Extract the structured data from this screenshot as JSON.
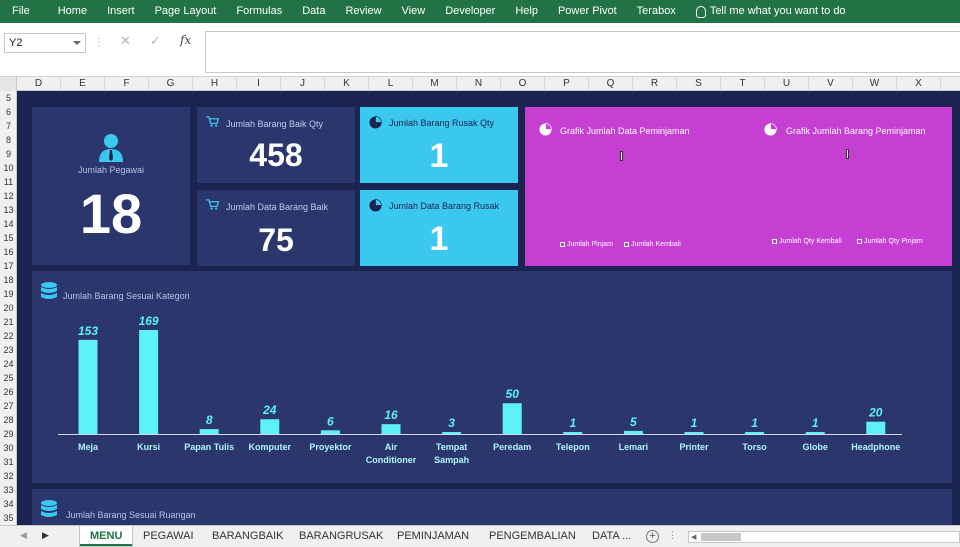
{
  "ribbon": {
    "tabs": [
      "File",
      "Home",
      "Insert",
      "Page Layout",
      "Formulas",
      "Data",
      "Review",
      "View",
      "Developer",
      "Help",
      "Power Pivot",
      "Terabox"
    ],
    "tell_me": "Tell me what you want to do"
  },
  "formula_bar": {
    "name_box": "Y2",
    "cancel_icon": "✕",
    "enter_icon": "✓",
    "fx_label": "fx",
    "formula_value": ""
  },
  "columns": [
    "D",
    "E",
    "F",
    "G",
    "H",
    "I",
    "J",
    "K",
    "L",
    "M",
    "N",
    "O",
    "P",
    "Q",
    "R",
    "S",
    "T",
    "U",
    "V",
    "W",
    "X"
  ],
  "rows": [
    "5",
    "6",
    "7",
    "8",
    "9",
    "10",
    "11",
    "12",
    "13",
    "14",
    "15",
    "16",
    "17",
    "18",
    "19",
    "20",
    "21",
    "22",
    "23",
    "24",
    "25",
    "26",
    "27",
    "28",
    "29",
    "30",
    "31",
    "32",
    "33",
    "34",
    "35"
  ],
  "dashboard": {
    "pegawai": {
      "label": "Jumlah Pegawai",
      "value": "18",
      "icon": "user-icon"
    },
    "barang_baik_qty": {
      "label": "Jumlah Barang Baik Qty",
      "value": "458",
      "icon": "cart-icon"
    },
    "data_barang_baik": {
      "label": "Jumlah Data Barang Baik",
      "value": "75",
      "icon": "cart-icon"
    },
    "barang_rusak_qty": {
      "label": "Jumlah Barang Rusak Qty",
      "value": "1",
      "icon": "pie-icon"
    },
    "data_barang_rusak": {
      "label": "Jumlah Data Barang Rusak",
      "value": "1",
      "icon": "pie-icon"
    },
    "grafik_data_peminjaman": {
      "title": "Grafik Jumlah Data Peminjaman",
      "legend": [
        "Jumlah Pinjam",
        "Jumlah Kembali"
      ]
    },
    "grafik_barang_peminjaman": {
      "title": "Grafik Jumlah Barang Peminjaman",
      "legend": [
        "Jumlah Qty Kembali",
        "Jumlah Qty Pinjam"
      ]
    },
    "kategori_title": "Jumlah Barang Sesuai Kategori",
    "ruangan_title": "Jumlah Barang Sesuai Ruangan",
    "colors": {
      "navy": "#2b366c",
      "cyan": "#3ac8ef",
      "magenta": "#c63fd3",
      "bar": "#5ef2f7",
      "background": "#1b2350"
    }
  },
  "chart_data": {
    "type": "bar",
    "title": "Jumlah Barang Sesuai Kategori",
    "categories": [
      "Meja",
      "Kursi",
      "Papan Tulis",
      "Komputer",
      "Proyektor",
      "Air Conditioner",
      "Tempat Sampah",
      "Peredam",
      "Telepon",
      "Lemari",
      "Printer",
      "Torso",
      "Globe",
      "Headphone"
    ],
    "values": [
      153,
      169,
      8,
      24,
      6,
      16,
      3,
      50,
      1,
      5,
      1,
      1,
      1,
      20
    ],
    "ylim": [
      0,
      169
    ],
    "grid": false,
    "legend": "none"
  },
  "sheet_tabs": [
    "MENU",
    "PEGAWAI",
    "BARANGBAIK",
    "BARANGRUSAK",
    "PEMINJAMAN",
    "PENGEMBALIAN",
    "DATA ..."
  ]
}
